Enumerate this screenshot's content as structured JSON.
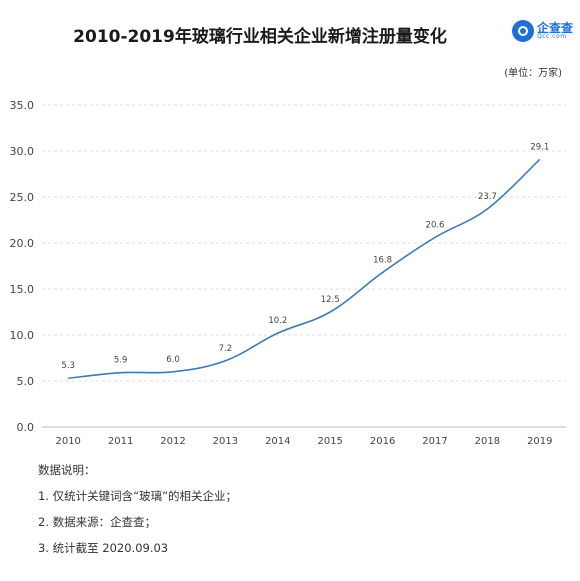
{
  "header": {
    "title": "2010-2019年玻璃行业相关企业新增注册量变化",
    "logo_name": "企查查",
    "logo_domain": "Qcc.com",
    "unit": "(单位：万家)"
  },
  "notes": {
    "heading": "数据说明：",
    "items": [
      "1. 仅统计关键词含“玻璃”的相关企业；",
      "2. 数据来源：企查查；",
      "3. 统计截至 2020.09.03"
    ]
  },
  "chart_data": {
    "type": "line",
    "title": "2010-2019年玻璃行业相关企业新增注册量变化",
    "xlabel": "",
    "ylabel": "",
    "categories": [
      "2010",
      "2011",
      "2012",
      "2013",
      "2014",
      "2015",
      "2016",
      "2017",
      "2018",
      "2019"
    ],
    "series": [
      {
        "values": [
          5.3,
          5.9,
          6.0,
          7.2,
          10.2,
          12.5,
          16.8,
          20.6,
          23.7,
          29.1
        ]
      }
    ],
    "ylim": [
      0,
      35
    ],
    "yticks": [
      "0.0",
      "5.0",
      "10.0",
      "15.0",
      "20.0",
      "25.0",
      "30.0",
      "35.0"
    ],
    "grid": true,
    "line_color": "#3f7bb5"
  }
}
